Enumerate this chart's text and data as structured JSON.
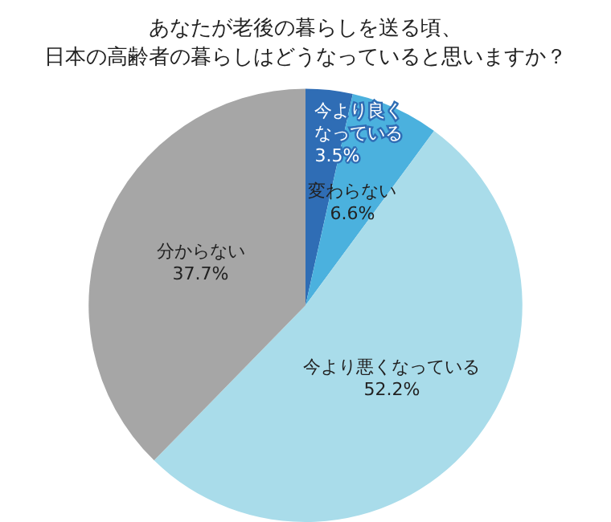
{
  "chart_data": {
    "type": "pie",
    "title": "あなたが老後の暮らしを送る頃、日本の高齢者の暮らしはどうなっていると思いますか？",
    "categories": [
      "今より良くなっている",
      "変わらない",
      "今より悪くなっている",
      "分からない"
    ],
    "values": [
      3.5,
      6.6,
      52.2,
      37.7
    ],
    "colors": [
      "#2f6db5",
      "#4bb1de",
      "#a9dcea",
      "#a6a6a6"
    ],
    "value_labels": [
      "3.5%",
      "6.6%",
      "52.2%",
      "37.7%"
    ],
    "legend": false
  }
}
